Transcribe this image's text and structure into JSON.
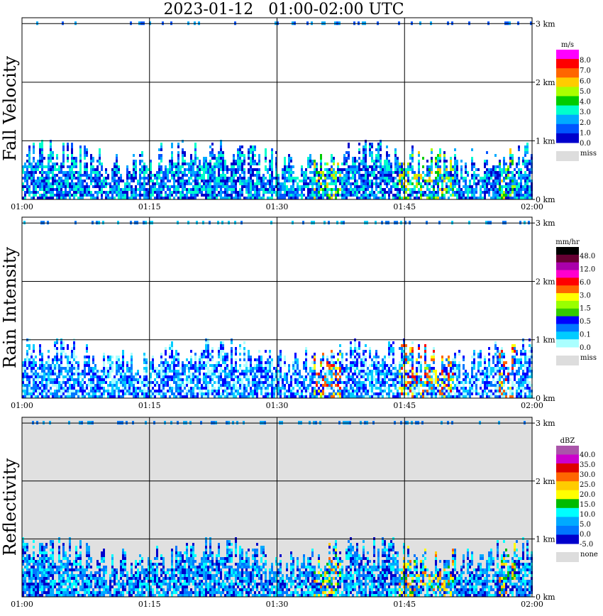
{
  "title": "2023-01-12   01:00-02:00 UTC",
  "chart_data": [
    {
      "type": "heatmap",
      "title": "Fall Velocity",
      "ylabel": "Fall Velocity",
      "x_ticks": [
        "01:00",
        "01:15",
        "01:30",
        "01:45",
        "02:00"
      ],
      "y_ticks": [
        "0 km",
        "1 km",
        "2 km",
        "3 km"
      ],
      "ylim_km": [
        0,
        3.1
      ],
      "grid": true,
      "legend_position": "right",
      "legend_unit": "m/s",
      "legend_labels": [
        "8.0",
        "7.0",
        "6.0",
        "5.0",
        "4.0",
        "3.0",
        "2.0",
        "1.0",
        "0.0"
      ],
      "legend_colors": [
        "#ff00ff",
        "#ff0000",
        "#ff6600",
        "#ffcc00",
        "#aaff00",
        "#00cc00",
        "#00ffcc",
        "#00aaff",
        "#0055ff",
        "#0000cc"
      ],
      "missing_label": "miss",
      "background": "#ffffff"
    },
    {
      "type": "heatmap",
      "title": "Rain Intensity",
      "ylabel": "Rain Intensity",
      "x_ticks": [
        "01:00",
        "01:15",
        "01:30",
        "01:45",
        "02:00"
      ],
      "y_ticks": [
        "0 km",
        "1 km",
        "2 km",
        "3 km"
      ],
      "ylim_km": [
        0,
        3.1
      ],
      "grid": true,
      "legend_position": "right",
      "legend_unit": "mm/hr",
      "legend_labels": [
        "48.0",
        "12.0",
        "6.0",
        "3.0",
        "1.5",
        "0.5",
        "0.1",
        "0.0"
      ],
      "legend_colors": [
        "#000000",
        "#660033",
        "#aa00aa",
        "#ff00cc",
        "#ff0000",
        "#ff6600",
        "#ffff00",
        "#99ff00",
        "#33cc00",
        "#0000ff",
        "#0077ff",
        "#00ccff",
        "#aaffff"
      ],
      "missing_label": "miss",
      "background": "#ffffff"
    },
    {
      "type": "heatmap",
      "title": "Reflectivity",
      "ylabel": "Reflectivity",
      "x_ticks": [
        "01:00",
        "01:15",
        "01:30",
        "01:45",
        "02:00"
      ],
      "y_ticks": [
        "0 km",
        "1 km",
        "2 km",
        "3 km"
      ],
      "ylim_km": [
        0,
        3.1
      ],
      "grid": true,
      "legend_position": "right",
      "legend_unit": "dBZ",
      "legend_labels": [
        "40.0",
        "35.0",
        "30.0",
        "25.0",
        "20.0",
        "15.0",
        "10.0",
        "5.0",
        "0.0",
        "-5.0"
      ],
      "legend_colors": [
        "#aa55aa",
        "#cc00cc",
        "#dd0000",
        "#ff6600",
        "#ffcc00",
        "#ffff00",
        "#00bb00",
        "#00ffff",
        "#00aaff",
        "#0077ff",
        "#0000cc"
      ],
      "missing_label": "none",
      "background": "#e0e0e0"
    }
  ]
}
